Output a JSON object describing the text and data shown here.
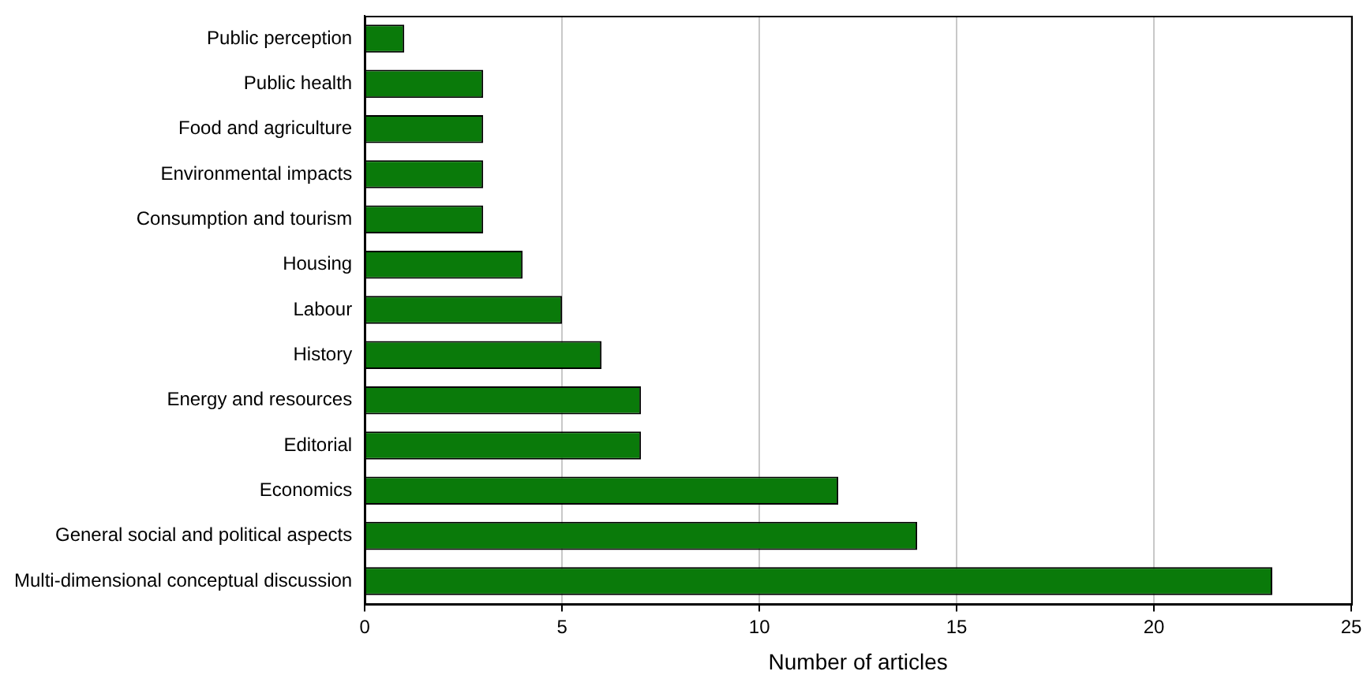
{
  "chart_data": {
    "type": "bar",
    "orientation": "horizontal",
    "xlabel": "Number of articles",
    "categories": [
      "Public perception",
      "Public health",
      "Food and agriculture",
      "Environmental impacts",
      "Consumption and tourism",
      "Housing",
      "Labour",
      "History",
      "Energy and resources",
      "Editorial",
      "Economics",
      "General social and political aspects",
      "Multi-dimensional conceptual discussion"
    ],
    "values": [
      1,
      3,
      3,
      3,
      3,
      4,
      5,
      6,
      7,
      7,
      12,
      14,
      23
    ],
    "color": "#0a7a0a",
    "xlim": [
      0,
      25
    ],
    "xticks": [
      0,
      5,
      10,
      15,
      20,
      25
    ],
    "grid": "x",
    "legend": false
  }
}
